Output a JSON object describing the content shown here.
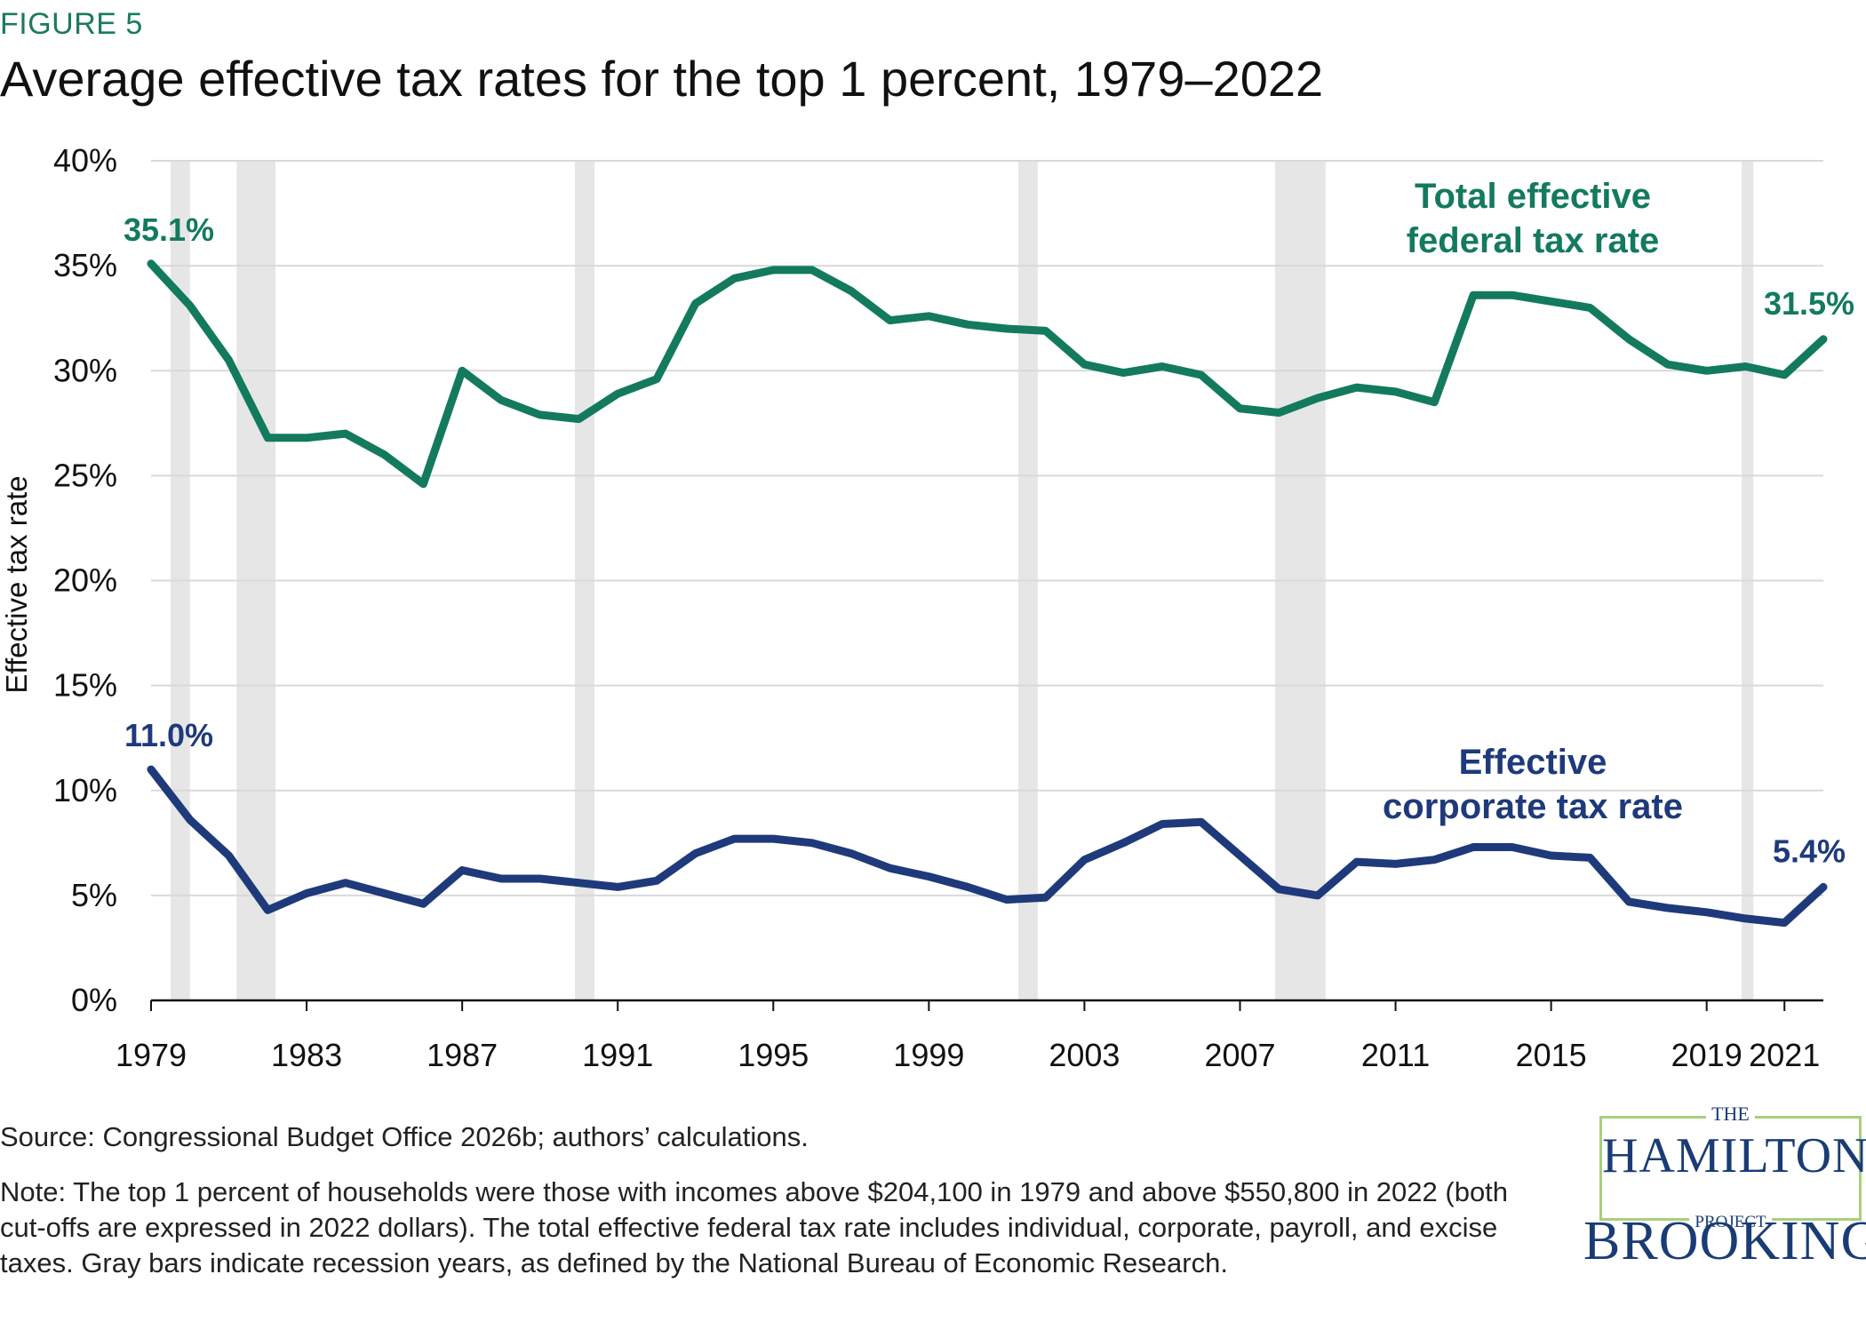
{
  "figure_label": "FIGURE 5",
  "title": "Average effective tax rates for the top 1 percent, 1979–2022",
  "source": "Source: Congressional Budget Office 2026b; authors’ calculations.",
  "note": "Note: The top 1 percent of households were those with incomes above $204,100 in 1979 and above $550,800 in 2022 (both cut-offs are expressed in 2022 dollars). The total effective federal tax rate includes individual, corporate, payroll, and excise taxes. Gray bars indicate recession years, as defined by the National Bureau of Economic Research.",
  "logo": {
    "the": "THE",
    "main": "HAMILTON",
    "project": "PROJECT",
    "brookings": "BROOKINGS"
  },
  "chart_data": {
    "type": "line",
    "ylabel": "Effective tax rate",
    "ylim": [
      0,
      40
    ],
    "yticks": [
      0,
      5,
      10,
      15,
      20,
      25,
      30,
      35,
      40
    ],
    "ytick_labels": [
      "0%",
      "5%",
      "10%",
      "15%",
      "20%",
      "25%",
      "30%",
      "35%",
      "40%"
    ],
    "xlim": [
      1979,
      2022
    ],
    "xticks": [
      1979,
      1983,
      1987,
      1991,
      1995,
      1999,
      2003,
      2007,
      2011,
      2015,
      2019,
      2021
    ],
    "xtick_labels": [
      "1979",
      "1983",
      "1987",
      "1991",
      "1995",
      "1999",
      "2003",
      "2007",
      "2011",
      "2015",
      "2019",
      "2021"
    ],
    "grid": true,
    "recessions": [
      [
        1979.5,
        1980
      ],
      [
        1981.2,
        1982.2
      ],
      [
        1989.9,
        1990.4
      ],
      [
        2001.3,
        2001.8
      ],
      [
        2007.9,
        2009.2
      ],
      [
        2019.9,
        2020.2
      ]
    ],
    "colors": {
      "total": "#137a5e",
      "corporate": "#1e3a7b",
      "recession": "#e6e6e6",
      "grid": "#d9d9d9"
    },
    "series": [
      {
        "name": "Total effective federal tax rate",
        "label_lines": [
          "Total effective",
          "federal tax rate"
        ],
        "color": "#137a5e",
        "start_label": "35.1%",
        "end_label": "31.5%",
        "x": [
          1979,
          1980,
          1981,
          1982,
          1983,
          1984,
          1985,
          1986,
          1987,
          1988,
          1989,
          1990,
          1991,
          1992,
          1993,
          1994,
          1995,
          1996,
          1997,
          1998,
          1999,
          2000,
          2001,
          2002,
          2003,
          2004,
          2005,
          2006,
          2007,
          2008,
          2009,
          2010,
          2011,
          2012,
          2013,
          2014,
          2015,
          2016,
          2017,
          2018,
          2019,
          2020,
          2021,
          2022
        ],
        "values": [
          35.1,
          33.1,
          30.5,
          26.8,
          26.8,
          27.0,
          26.0,
          24.6,
          30.0,
          28.6,
          27.9,
          27.7,
          28.9,
          29.6,
          33.2,
          34.4,
          34.8,
          34.8,
          33.8,
          32.4,
          32.6,
          32.2,
          32.0,
          31.9,
          30.3,
          29.9,
          30.2,
          29.8,
          28.2,
          28.0,
          28.7,
          29.2,
          29.0,
          28.5,
          33.6,
          33.6,
          33.3,
          33.0,
          31.5,
          30.3,
          30.0,
          30.2,
          29.8,
          31.5
        ]
      },
      {
        "name": "Effective corporate tax rate",
        "label_lines": [
          "Effective",
          "corporate tax rate"
        ],
        "color": "#1e3a7b",
        "start_label": "11.0%",
        "end_label": "5.4%",
        "x": [
          1979,
          1980,
          1981,
          1982,
          1983,
          1984,
          1985,
          1986,
          1987,
          1988,
          1989,
          1990,
          1991,
          1992,
          1993,
          1994,
          1995,
          1996,
          1997,
          1998,
          1999,
          2000,
          2001,
          2002,
          2003,
          2004,
          2005,
          2006,
          2007,
          2008,
          2009,
          2010,
          2011,
          2012,
          2013,
          2014,
          2015,
          2016,
          2017,
          2018,
          2019,
          2020,
          2021,
          2022
        ],
        "values": [
          11.0,
          8.6,
          6.9,
          4.3,
          5.1,
          5.6,
          5.1,
          4.6,
          6.2,
          5.8,
          5.8,
          5.6,
          5.4,
          5.7,
          7.0,
          7.7,
          7.7,
          7.5,
          7.0,
          6.3,
          5.9,
          5.4,
          4.8,
          4.9,
          6.7,
          7.5,
          8.4,
          8.5,
          6.9,
          5.3,
          5.0,
          6.6,
          6.5,
          6.7,
          7.3,
          7.3,
          6.9,
          6.8,
          4.7,
          4.4,
          4.2,
          3.9,
          3.7,
          5.4
        ]
      }
    ]
  }
}
